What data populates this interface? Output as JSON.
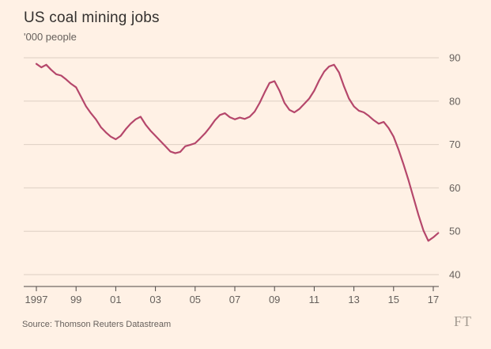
{
  "header": {
    "title": "US coal mining jobs",
    "subtitle": "'000 people"
  },
  "footer": {
    "source": "Source: Thomson Reuters Datastream",
    "logo": "FT"
  },
  "colors": {
    "background": "#fff1e5",
    "line": "#b5476b",
    "grid": "#ddd0c4",
    "axis": "#4d4845",
    "title_text": "#33302e",
    "muted_text": "#66605c",
    "logo_text": "#a59c93"
  },
  "chart_data": {
    "type": "line",
    "title": "US coal mining jobs",
    "ylabel": "'000 people",
    "xlabel": "",
    "grid": "horizontal",
    "legend": "none",
    "y_axis_side": "right",
    "xlim": [
      1996.6,
      2017.6
    ],
    "ylim": [
      40,
      90
    ],
    "y_ticks": [
      40,
      50,
      60,
      70,
      80,
      90
    ],
    "x_ticks": [
      {
        "x": 1997,
        "label": "1997"
      },
      {
        "x": 1999,
        "label": "99"
      },
      {
        "x": 2001,
        "label": "01"
      },
      {
        "x": 2003,
        "label": "03"
      },
      {
        "x": 2005,
        "label": "05"
      },
      {
        "x": 2007,
        "label": "07"
      },
      {
        "x": 2009,
        "label": "09"
      },
      {
        "x": 2011,
        "label": "11"
      },
      {
        "x": 2013,
        "label": "13"
      },
      {
        "x": 2015,
        "label": "15"
      },
      {
        "x": 2017,
        "label": "17"
      }
    ],
    "series": [
      {
        "name": "US coal mining jobs ('000 people)",
        "points": [
          [
            1997.0,
            88.6
          ],
          [
            1997.25,
            87.8
          ],
          [
            1997.5,
            88.4
          ],
          [
            1997.75,
            87.2
          ],
          [
            1998.0,
            86.2
          ],
          [
            1998.25,
            85.9
          ],
          [
            1998.5,
            85.0
          ],
          [
            1998.75,
            84.0
          ],
          [
            1999.0,
            83.2
          ],
          [
            1999.25,
            81.0
          ],
          [
            1999.5,
            78.8
          ],
          [
            1999.75,
            77.2
          ],
          [
            2000.0,
            75.8
          ],
          [
            2000.25,
            74.0
          ],
          [
            2000.5,
            72.8
          ],
          [
            2000.75,
            71.8
          ],
          [
            2001.0,
            71.2
          ],
          [
            2001.25,
            72.0
          ],
          [
            2001.5,
            73.5
          ],
          [
            2001.75,
            74.8
          ],
          [
            2002.0,
            75.8
          ],
          [
            2002.25,
            76.4
          ],
          [
            2002.5,
            74.6
          ],
          [
            2002.75,
            73.2
          ],
          [
            2003.0,
            72.0
          ],
          [
            2003.25,
            70.8
          ],
          [
            2003.5,
            69.6
          ],
          [
            2003.75,
            68.4
          ],
          [
            2004.0,
            68.0
          ],
          [
            2004.25,
            68.3
          ],
          [
            2004.5,
            69.6
          ],
          [
            2004.75,
            69.9
          ],
          [
            2005.0,
            70.3
          ],
          [
            2005.25,
            71.4
          ],
          [
            2005.5,
            72.6
          ],
          [
            2005.75,
            74.0
          ],
          [
            2006.0,
            75.6
          ],
          [
            2006.25,
            76.8
          ],
          [
            2006.5,
            77.2
          ],
          [
            2006.75,
            76.3
          ],
          [
            2007.0,
            75.8
          ],
          [
            2007.25,
            76.2
          ],
          [
            2007.5,
            75.9
          ],
          [
            2007.75,
            76.4
          ],
          [
            2008.0,
            77.6
          ],
          [
            2008.25,
            79.6
          ],
          [
            2008.5,
            82.0
          ],
          [
            2008.75,
            84.2
          ],
          [
            2009.0,
            84.6
          ],
          [
            2009.25,
            82.4
          ],
          [
            2009.5,
            79.6
          ],
          [
            2009.75,
            78.0
          ],
          [
            2010.0,
            77.4
          ],
          [
            2010.25,
            78.2
          ],
          [
            2010.5,
            79.4
          ],
          [
            2010.75,
            80.6
          ],
          [
            2011.0,
            82.4
          ],
          [
            2011.25,
            84.8
          ],
          [
            2011.5,
            86.8
          ],
          [
            2011.75,
            88.0
          ],
          [
            2012.0,
            88.4
          ],
          [
            2012.25,
            86.6
          ],
          [
            2012.5,
            83.4
          ],
          [
            2012.75,
            80.6
          ],
          [
            2013.0,
            78.8
          ],
          [
            2013.25,
            77.8
          ],
          [
            2013.5,
            77.4
          ],
          [
            2013.75,
            76.6
          ],
          [
            2014.0,
            75.6
          ],
          [
            2014.25,
            74.8
          ],
          [
            2014.5,
            75.2
          ],
          [
            2014.75,
            73.8
          ],
          [
            2015.0,
            71.8
          ],
          [
            2015.25,
            68.8
          ],
          [
            2015.5,
            65.4
          ],
          [
            2015.75,
            61.8
          ],
          [
            2016.0,
            57.8
          ],
          [
            2016.25,
            53.8
          ],
          [
            2016.5,
            50.2
          ],
          [
            2016.75,
            47.8
          ],
          [
            2017.0,
            48.6
          ],
          [
            2017.25,
            49.6
          ]
        ]
      }
    ]
  }
}
